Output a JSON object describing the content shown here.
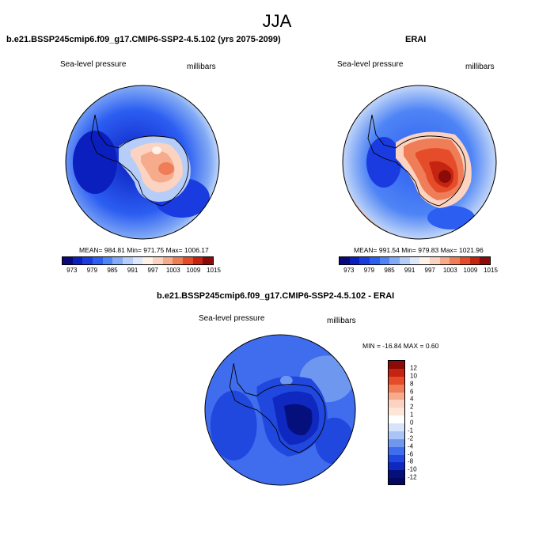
{
  "figure": {
    "season": "JJA"
  },
  "panels": [
    {
      "title": "b.e21.BSSP245cmip6.f09_g17.CMIP6-SSP2-4.5.102 (yrs 2075-2099)",
      "variable": "Sea-level pressure",
      "units": "millibars",
      "stats": "MEAN= 984.81  Min= 971.75  Max= 1006.17",
      "colorbar": {
        "ticks": [
          "973",
          "979",
          "985",
          "991",
          "997",
          "1003",
          "1009",
          "1015"
        ],
        "colors": [
          "#08087c",
          "#0b1fbf",
          "#1a3be0",
          "#2c5ef2",
          "#4e84f5",
          "#82aaf5",
          "#b5cdf8",
          "#dde8fb",
          "#fff2e8",
          "#fbd3c0",
          "#f6ab8c",
          "#ef7d57",
          "#e54c29",
          "#c42410",
          "#8c0a07"
        ]
      }
    },
    {
      "title": "ERAI",
      "variable": "Sea-level pressure",
      "units": "millibars",
      "stats": "MEAN= 991.54  Min= 979.83  Max= 1021.96",
      "colorbar": {
        "ticks": [
          "973",
          "979",
          "985",
          "991",
          "997",
          "1003",
          "1009",
          "1015"
        ],
        "colors": [
          "#08087c",
          "#0b1fbf",
          "#1a3be0",
          "#2c5ef2",
          "#4e84f5",
          "#82aaf5",
          "#b5cdf8",
          "#dde8fb",
          "#fff2e8",
          "#fbd3c0",
          "#f6ab8c",
          "#ef7d57",
          "#e54c29",
          "#c42410",
          "#8c0a07"
        ]
      }
    },
    {
      "title": "b.e21.BSSP245cmip6.f09_g17.CMIP6-SSP2-4.5.102 - ERAI",
      "variable": "Sea-level pressure",
      "units": "millibars",
      "stats": "MIN = -16.84  MAX =  0.60",
      "colorbar": {
        "ticks": [
          "12",
          "10",
          "8",
          "6",
          "4",
          "2",
          "1",
          "0",
          "-1",
          "-2",
          "-4",
          "-6",
          "-8",
          "-10",
          "-12"
        ],
        "colors": [
          "#8c0a07",
          "#c42410",
          "#e54c29",
          "#ef7d57",
          "#f6ab8c",
          "#fbd3c0",
          "#fde6d8",
          "#ffffff",
          "#d6e3fb",
          "#a9c4f5",
          "#6e98f0",
          "#3f6ded",
          "#2148de",
          "#0f28bf",
          "#06107c",
          "#040860"
        ]
      }
    }
  ]
}
